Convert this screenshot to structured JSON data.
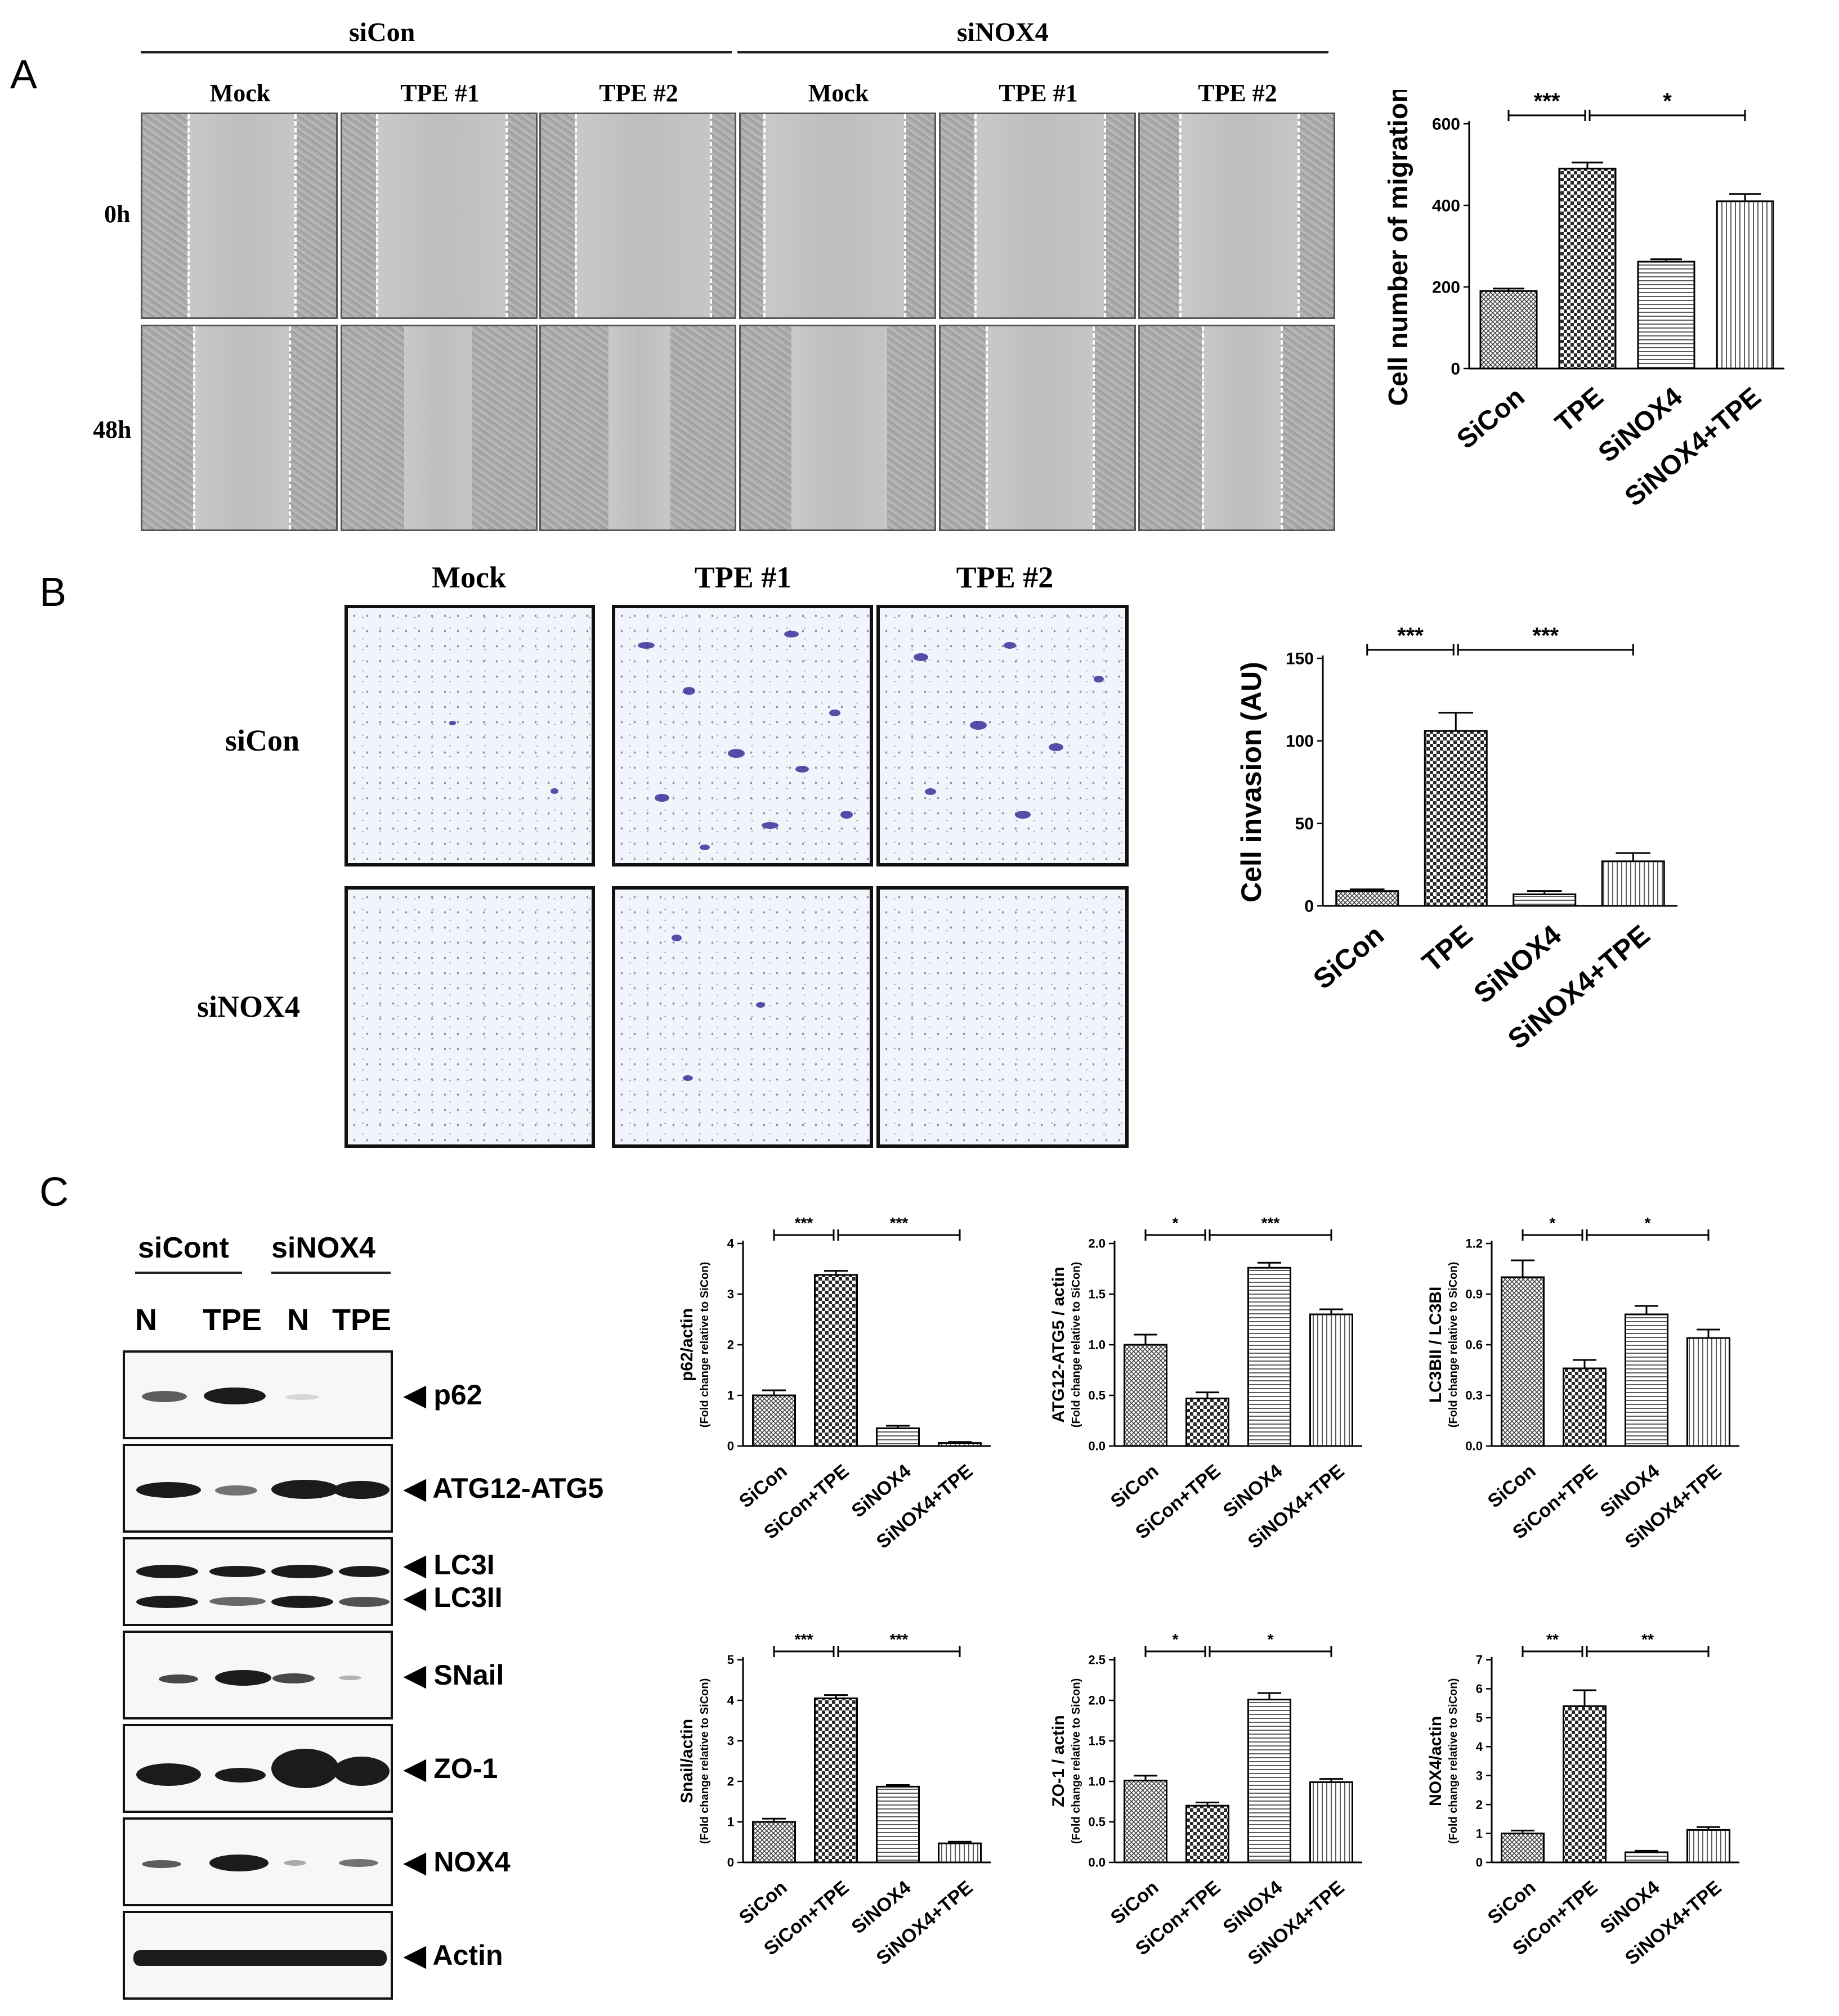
{
  "panels": {
    "a": "A",
    "b": "B",
    "c": "C"
  },
  "panel_a": {
    "group_siCon": "siCon",
    "group_siNOX4": "siNOX4",
    "columns": [
      "Mock",
      "TPE #1",
      "TPE #2",
      "Mock",
      "TPE #1",
      "TPE #2"
    ],
    "rows": [
      "0h",
      "48h"
    ]
  },
  "panel_b": {
    "columns": [
      "Mock",
      "TPE #1",
      "TPE #2"
    ],
    "rows": [
      "siCon",
      "siNOX4"
    ]
  },
  "panel_c_blot": {
    "groups": [
      "siCont",
      "siNOX4"
    ],
    "lanes": [
      "N",
      "TPE",
      "N",
      "TPE"
    ],
    "proteins": [
      "p62",
      "ATG12-ATG5",
      "LC3I",
      "LC3II",
      "SNail",
      "ZO-1",
      "NOX4",
      "Actin"
    ],
    "arrow": "◀"
  },
  "chart_data": [
    {
      "id": "migration",
      "type": "bar",
      "title": "",
      "xlabel": "",
      "ylabel": "Cell number of migration",
      "ylim": [
        0,
        600
      ],
      "yticks": [
        0,
        200,
        400,
        600
      ],
      "categories": [
        "SiCon",
        "TPE",
        "SiNOX4",
        "SiNOX4+TPE"
      ],
      "values": [
        190,
        490,
        262,
        410
      ],
      "errors": [
        6,
        15,
        6,
        18
      ],
      "significance": [
        {
          "from": 0,
          "to": 1,
          "label": "***"
        },
        {
          "from": 1,
          "to": 3,
          "label": "*"
        }
      ]
    },
    {
      "id": "invasion",
      "type": "bar",
      "title": "",
      "xlabel": "",
      "ylabel": "Cell invasion (AU)",
      "ylim": [
        0,
        150
      ],
      "yticks": [
        0,
        50,
        100,
        150
      ],
      "categories": [
        "SiCon",
        "TPE",
        "SiNOX4",
        "SiNOX4+TPE"
      ],
      "values": [
        9,
        106,
        7,
        27
      ],
      "errors": [
        1,
        11,
        2,
        5
      ],
      "significance": [
        {
          "from": 0,
          "to": 1,
          "label": "***"
        },
        {
          "from": 1,
          "to": 3,
          "label": "***"
        }
      ]
    },
    {
      "id": "p62",
      "type": "bar",
      "title": "",
      "xlabel": "",
      "ylabel": "p62/actin",
      "ysublabel": "(Fold change relative to SiCon)",
      "ylim": [
        0,
        4
      ],
      "yticks": [
        0,
        1,
        2,
        3,
        4
      ],
      "categories": [
        "SiCon",
        "SiCon+TPE",
        "SiNOX4",
        "SiNOX4+TPE"
      ],
      "values": [
        1.0,
        3.38,
        0.35,
        0.06
      ],
      "errors": [
        0.1,
        0.08,
        0.05,
        0.02
      ],
      "significance": [
        {
          "from": 0,
          "to": 1,
          "label": "***"
        },
        {
          "from": 1,
          "to": 3,
          "label": "***"
        }
      ]
    },
    {
      "id": "atg",
      "type": "bar",
      "title": "",
      "xlabel": "",
      "ylabel": "ATG12-ATG5 / actin",
      "ysublabel": "(Fold change relative to SiCon)",
      "ylim": [
        0,
        2.0
      ],
      "yticks": [
        0.0,
        0.5,
        1.0,
        1.5,
        2.0
      ],
      "categories": [
        "SiCon",
        "SiCon+TPE",
        "SiNOX4",
        "SiNOX4+TPE"
      ],
      "values": [
        1.0,
        0.47,
        1.76,
        1.3
      ],
      "errors": [
        0.1,
        0.06,
        0.05,
        0.05
      ],
      "significance": [
        {
          "from": 0,
          "to": 1,
          "label": "*"
        },
        {
          "from": 1,
          "to": 3,
          "label": "***"
        }
      ]
    },
    {
      "id": "lc3",
      "type": "bar",
      "title": "",
      "xlabel": "",
      "ylabel": "LC3BII / LC3BI",
      "ysublabel": "(Fold change relative to SiCon)",
      "ylim": [
        0,
        1.2
      ],
      "yticks": [
        0.0,
        0.3,
        0.6,
        0.9,
        1.2
      ],
      "categories": [
        "SiCon",
        "SiCon+TPE",
        "SiNOX4",
        "SiNOX4+TPE"
      ],
      "values": [
        1.0,
        0.46,
        0.78,
        0.64
      ],
      "errors": [
        0.1,
        0.05,
        0.05,
        0.05
      ],
      "significance": [
        {
          "from": 0,
          "to": 1,
          "label": "*"
        },
        {
          "from": 1,
          "to": 3,
          "label": "*"
        }
      ]
    },
    {
      "id": "snail",
      "type": "bar",
      "title": "",
      "xlabel": "",
      "ylabel": "Snail/actin",
      "ysublabel": "(Fold change relative to SiCon)",
      "ylim": [
        0,
        5
      ],
      "yticks": [
        0,
        1,
        2,
        3,
        4,
        5
      ],
      "categories": [
        "SiCon",
        "SiCon+TPE",
        "SiNOX4",
        "SiNOX4+TPE"
      ],
      "values": [
        1.0,
        4.05,
        1.87,
        0.47
      ],
      "errors": [
        0.08,
        0.08,
        0.04,
        0.04
      ],
      "significance": [
        {
          "from": 0,
          "to": 1,
          "label": "***"
        },
        {
          "from": 1,
          "to": 3,
          "label": "***"
        }
      ]
    },
    {
      "id": "zo1",
      "type": "bar",
      "title": "",
      "xlabel": "",
      "ylabel": "ZO-1 / actin",
      "ysublabel": "(Fold change relative to SiCon)",
      "ylim": [
        0,
        2.5
      ],
      "yticks": [
        0.0,
        0.5,
        1.0,
        1.5,
        2.0,
        2.5
      ],
      "categories": [
        "SiCon",
        "SiCon+TPE",
        "SiNOX4",
        "SiNOX4+TPE"
      ],
      "values": [
        1.01,
        0.7,
        2.01,
        0.99
      ],
      "errors": [
        0.06,
        0.04,
        0.08,
        0.04
      ],
      "significance": [
        {
          "from": 0,
          "to": 1,
          "label": "*"
        },
        {
          "from": 1,
          "to": 3,
          "label": "*"
        }
      ]
    },
    {
      "id": "nox4",
      "type": "bar",
      "title": "",
      "xlabel": "",
      "ylabel": "NOX4/actin",
      "ysublabel": "(Fold change relative to SiCon)",
      "ylim": [
        0,
        7
      ],
      "yticks": [
        0,
        1,
        2,
        3,
        4,
        5,
        6,
        7
      ],
      "categories": [
        "SiCon",
        "SiCon+TPE",
        "SiNOX4",
        "SiNOX4+TPE"
      ],
      "values": [
        1.0,
        5.4,
        0.35,
        1.12
      ],
      "errors": [
        0.1,
        0.55,
        0.05,
        0.1
      ],
      "significance": [
        {
          "from": 0,
          "to": 1,
          "label": "**"
        },
        {
          "from": 1,
          "to": 3,
          "label": "**"
        }
      ]
    }
  ]
}
